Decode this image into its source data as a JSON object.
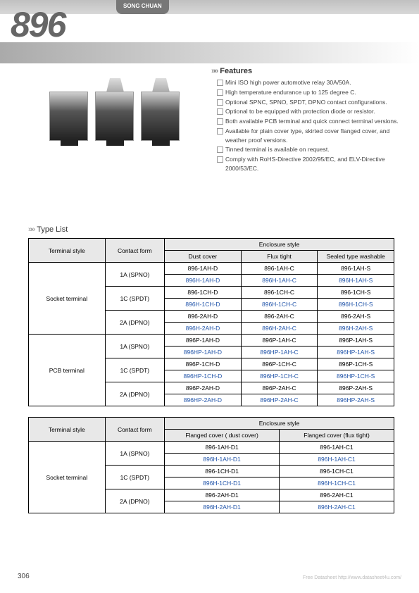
{
  "brand": "SONG CHUAN",
  "model": "896",
  "features_title": "Features",
  "features": [
    "Mini ISO high power automotive relay 30A/50A.",
    "High temperature endurance up to 125 degree C.",
    "Optional SPNC, SPNO, SPDT, DPNO contact configurations.",
    "Optional to be equipped with protection diode or resistor.",
    "Both available PCB terminal and quick connect terminal versions.",
    "Available for plain cover type, skirted cover flanged cover, and weather proof versions.",
    "Tinned terminal is available on request.",
    "Comply with RoHS-Directive 2002/95/EC, and ELV-Directive 2000/53/EC."
  ],
  "type_list_title": "Type List",
  "table1": {
    "headers": {
      "terminal": "Terminal style",
      "contact": "Contact form",
      "enclosure": "Enclosure style",
      "dust": "Dust cover",
      "flux": "Flux tight",
      "sealed": "Sealed type washable"
    },
    "groups": [
      {
        "terminal": "Socket terminal",
        "contacts": [
          {
            "form": "1A (SPNO)",
            "rows": [
              [
                "896-1AH-D",
                "896-1AH-C",
                "896-1AH-S"
              ],
              [
                "896H-1AH-D",
                "896H-1AH-C",
                "896H-1AH-S"
              ]
            ]
          },
          {
            "form": "1C (SPDT)",
            "rows": [
              [
                "896-1CH-D",
                "896-1CH-C",
                "896-1CH-S"
              ],
              [
                "896H-1CH-D",
                "896H-1CH-C",
                "896H-1CH-S"
              ]
            ]
          },
          {
            "form": "2A (DPNO)",
            "rows": [
              [
                "896-2AH-D",
                "896-2AH-C",
                "896-2AH-S"
              ],
              [
                "896H-2AH-D",
                "896H-2AH-C",
                "896H-2AH-S"
              ]
            ]
          }
        ]
      },
      {
        "terminal": "PCB terminal",
        "contacts": [
          {
            "form": "1A (SPNO)",
            "rows": [
              [
                "896P-1AH-D",
                "896P-1AH-C",
                "896P-1AH-S"
              ],
              [
                "896HP-1AH-D",
                "896HP-1AH-C",
                "896HP-1AH-S"
              ]
            ]
          },
          {
            "form": "1C (SPDT)",
            "rows": [
              [
                "896P-1CH-D",
                "896P-1CH-C",
                "896P-1CH-S"
              ],
              [
                "896HP-1CH-D",
                "896HP-1CH-C",
                "896HP-1CH-S"
              ]
            ]
          },
          {
            "form": "2A (DPNO)",
            "rows": [
              [
                "896P-2AH-D",
                "896P-2AH-C",
                "896P-2AH-S"
              ],
              [
                "896HP-2AH-D",
                "896HP-2AH-C",
                "896HP-2AH-S"
              ]
            ]
          }
        ]
      }
    ]
  },
  "table2": {
    "headers": {
      "terminal": "Terminal style",
      "contact": "Contact form",
      "enclosure": "Enclosure style",
      "fdust": "Flanged cover ( dust cover)",
      "fflux": "Flanged cover (flux tight)"
    },
    "groups": [
      {
        "terminal": "Socket terminal",
        "contacts": [
          {
            "form": "1A (SPNO)",
            "rows": [
              [
                "896-1AH-D1",
                "896-1AH-C1"
              ],
              [
                "896H-1AH-D1",
                "896H-1AH-C1"
              ]
            ]
          },
          {
            "form": "1C (SPDT)",
            "rows": [
              [
                "896-1CH-D1",
                "896-1CH-C1"
              ],
              [
                "896H-1CH-D1",
                "896H-1CH-C1"
              ]
            ]
          },
          {
            "form": "2A (DPNO)",
            "rows": [
              [
                "896-2AH-D1",
                "896-2AH-C1"
              ],
              [
                "896H-2AH-D1",
                "896H-2AH-C1"
              ]
            ]
          }
        ]
      }
    ]
  },
  "page_number": "306",
  "footer": "Free Datasheet http://www.datasheet4u.com/",
  "colors": {
    "blue": "#2255aa",
    "header_bg": "#e8e8e8"
  }
}
